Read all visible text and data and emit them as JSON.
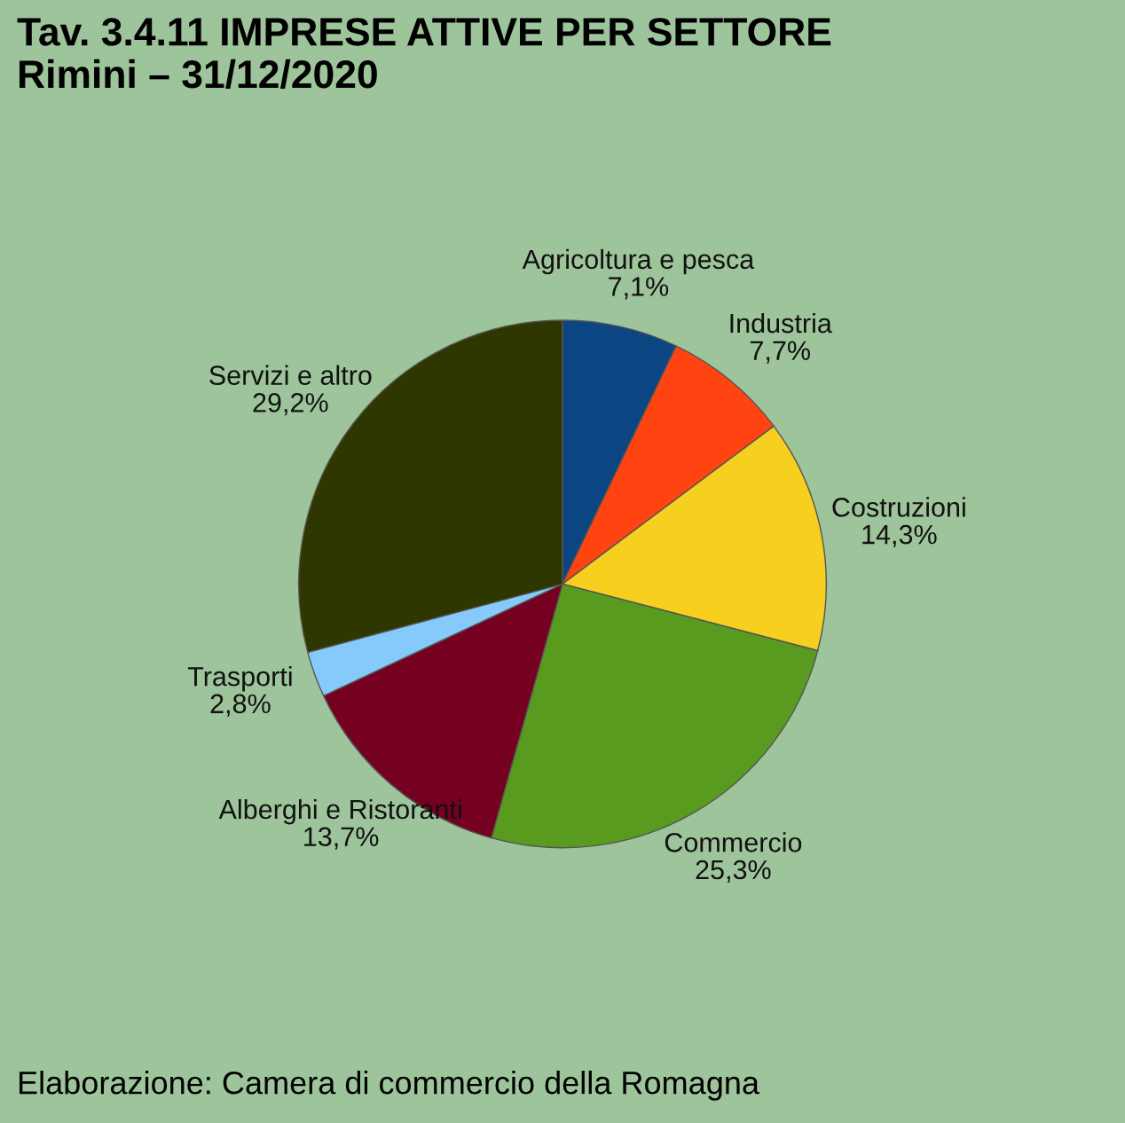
{
  "chart_data": {
    "type": "pie",
    "title": "Tav. 3.4.11 IMPRESE ATTIVE PER SETTORE\nRimini – 31/12/2020",
    "categories": [
      "Agricoltura e pesca",
      "Industria",
      "Costruzioni",
      "Commercio",
      "Alberghi e Ristoranti",
      "Trasporti",
      "Servizi e altro"
    ],
    "values": [
      7.1,
      7.7,
      14.3,
      25.3,
      13.7,
      2.8,
      29.2
    ],
    "value_labels": [
      "7,1%",
      "7,7%",
      "14,3%",
      "25,3%",
      "13,7%",
      "2,8%",
      "29,2%"
    ],
    "colors": [
      "#0b4682",
      "#ff4412",
      "#f7cf1f",
      "#599b1e",
      "#760020",
      "#86c9fb",
      "#2e3700"
    ],
    "annotations": [
      "Elaborazione: Camera di commercio della Romagna"
    ],
    "legend": false
  }
}
